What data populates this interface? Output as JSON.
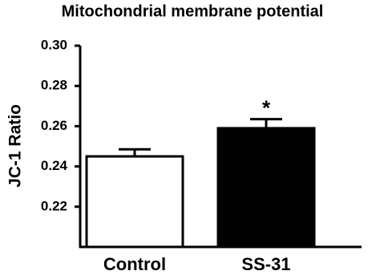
{
  "chart_data": {
    "type": "bar",
    "title": "Mitochondrial membrane potential",
    "y_label": "JC-1 Ratio",
    "categories": [
      "Control",
      "SS-31"
    ],
    "values": [
      0.245,
      0.259
    ],
    "errors": [
      0.0035,
      0.0045
    ],
    "colors": [
      "#ffffff",
      "#000000"
    ],
    "annotations": [
      null,
      "*"
    ],
    "ylim": [
      0.2,
      0.3
    ],
    "yticks": [
      0.22,
      0.24,
      0.26,
      0.28,
      {
        "value": 0.3,
        "label": "0.30"
      }
    ]
  }
}
